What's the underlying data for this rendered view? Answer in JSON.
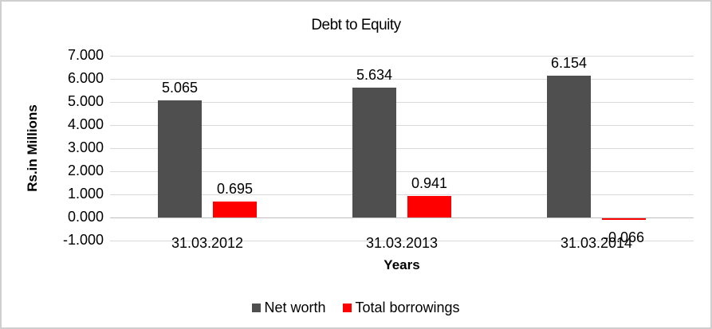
{
  "chart_data": {
    "type": "bar",
    "title": "Debt to Equity",
    "xlabel": "Years",
    "ylabel": "Rs.in Millions",
    "categories": [
      "31.03.2012",
      "31.03.2013",
      "31.03.2014"
    ],
    "series": [
      {
        "name": "Net worth",
        "color": "#4f4f4f",
        "values": [
          5.065,
          5.634,
          6.154
        ]
      },
      {
        "name": "Total borrowings",
        "color": "#ff0000",
        "values": [
          0.695,
          0.941,
          -0.066
        ]
      }
    ],
    "ylim": [
      -1,
      7
    ],
    "ytick_step": 1,
    "ytick_decimals": 3,
    "data_label_decimals": 3,
    "grid": true,
    "legend_position": "bottom",
    "colors": {
      "gridline": "#d9d9d9",
      "axis_line": "#bfbfbf",
      "text": "#000000",
      "frame_border": "#cfcfcf",
      "background": "#ffffff"
    }
  }
}
